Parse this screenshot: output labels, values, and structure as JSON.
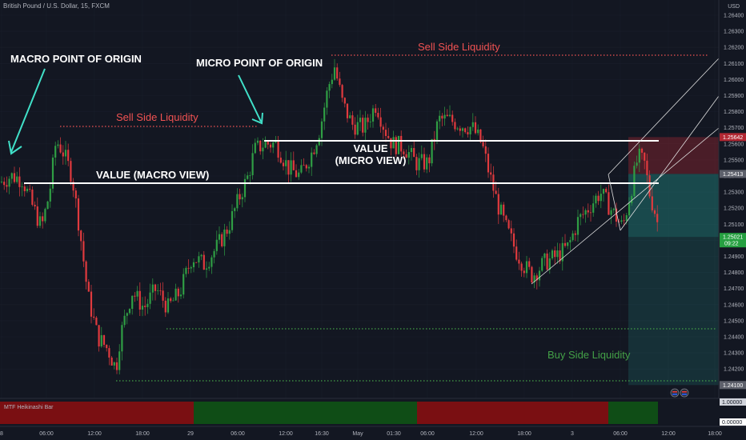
{
  "header": {
    "symbol_title": "British Pound / U.S. Dollar, 15, FXCM",
    "currency": "USD"
  },
  "price_axis": {
    "labels": [
      "1.26400",
      "1.26300",
      "1.26200",
      "1.26100",
      "1.26000",
      "1.25900",
      "1.25800",
      "1.25700",
      "1.25600",
      "1.25500",
      "1.25400",
      "1.25300",
      "1.25200",
      "1.25100",
      "1.25000",
      "1.24900",
      "1.24800",
      "1.24700",
      "1.24600",
      "1.24500",
      "1.24400",
      "1.24300",
      "1.24200"
    ],
    "badges": [
      {
        "id": "upper-box-price",
        "text": "1.25642",
        "color": "#b22833"
      },
      {
        "id": "mid-box-price",
        "text": "1.25413",
        "color": "#5d606b"
      },
      {
        "id": "current-price",
        "text": "1.25021",
        "sub": "09:22",
        "color": "#26a041"
      },
      {
        "id": "bsl-price",
        "text": "1.24100",
        "color": "#5d606b"
      }
    ]
  },
  "time_axis": {
    "labels": [
      "8",
      "06:00",
      "12:00",
      "18:00",
      "29",
      "06:00",
      "12:00",
      "16:30",
      "May",
      "01:30",
      "06:00",
      "12:00",
      "18:00",
      "3",
      "06:00",
      "12:00",
      "18:00"
    ]
  },
  "annotations": {
    "macro_origin": "MACRO POINT OF ORIGIN",
    "micro_origin": "MICRO POINT OF ORIGIN",
    "ssl_left": "Sell Side Liquidity",
    "ssl_top": "Sell Side Liquidity",
    "value_macro": "VALUE (MACRO VIEW)",
    "value_micro_line1": "VALUE",
    "value_micro_line2": "(MICRO VIEW)",
    "bsl": "Buy Side Liquidity"
  },
  "indicator": {
    "name": "MTF Heikinashi Bar",
    "axis_labels": [
      "1.00000",
      "0.00000"
    ],
    "segments": [
      {
        "state": "bearish",
        "color": "#7a0f12"
      },
      {
        "state": "bullish",
        "color": "#0f4d16"
      },
      {
        "state": "bearish",
        "color": "#7a0f12"
      },
      {
        "state": "bullish",
        "color": "#0f4d16"
      }
    ]
  },
  "colors": {
    "background": "#131722",
    "bull": "#26a69a",
    "bull_candle": "#2f9e44",
    "bear": "#e03a3e",
    "ssl": "#f05252",
    "bsl": "#43a047",
    "annotation": "#ffffff",
    "arrow": "#40e0c8",
    "grid": "#1e2230"
  }
}
